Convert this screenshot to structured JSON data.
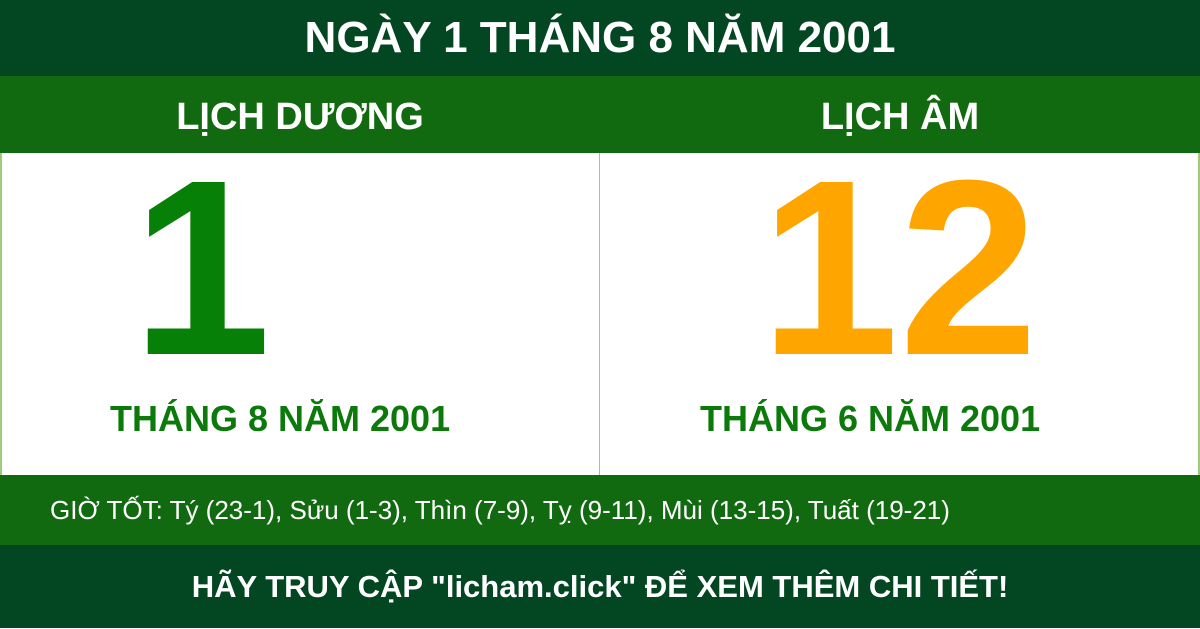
{
  "title": "NGÀY 1 THÁNG 8 NĂM 2001",
  "solar": {
    "heading": "LỊCH DƯƠNG",
    "day": "1",
    "month_year": "THÁNG 8 NĂM 2001"
  },
  "lunar": {
    "heading": "LỊCH ÂM",
    "day": "12",
    "month_year": "THÁNG 6 NĂM 2001"
  },
  "good_hours": "GIỜ TỐT: Tý (23-1), Sửu (1-3), Thìn (7-9), Tỵ (9-11), Mùi (13-15), Tuất (19-21)",
  "footer": "HÃY TRUY CẬP \"licham.click\" ĐỂ XEM THÊM CHI TIẾT!",
  "colors": {
    "dark_green": "#034622",
    "green": "#116a10",
    "solar_day": "#068006",
    "lunar_day": "#ffa500"
  }
}
